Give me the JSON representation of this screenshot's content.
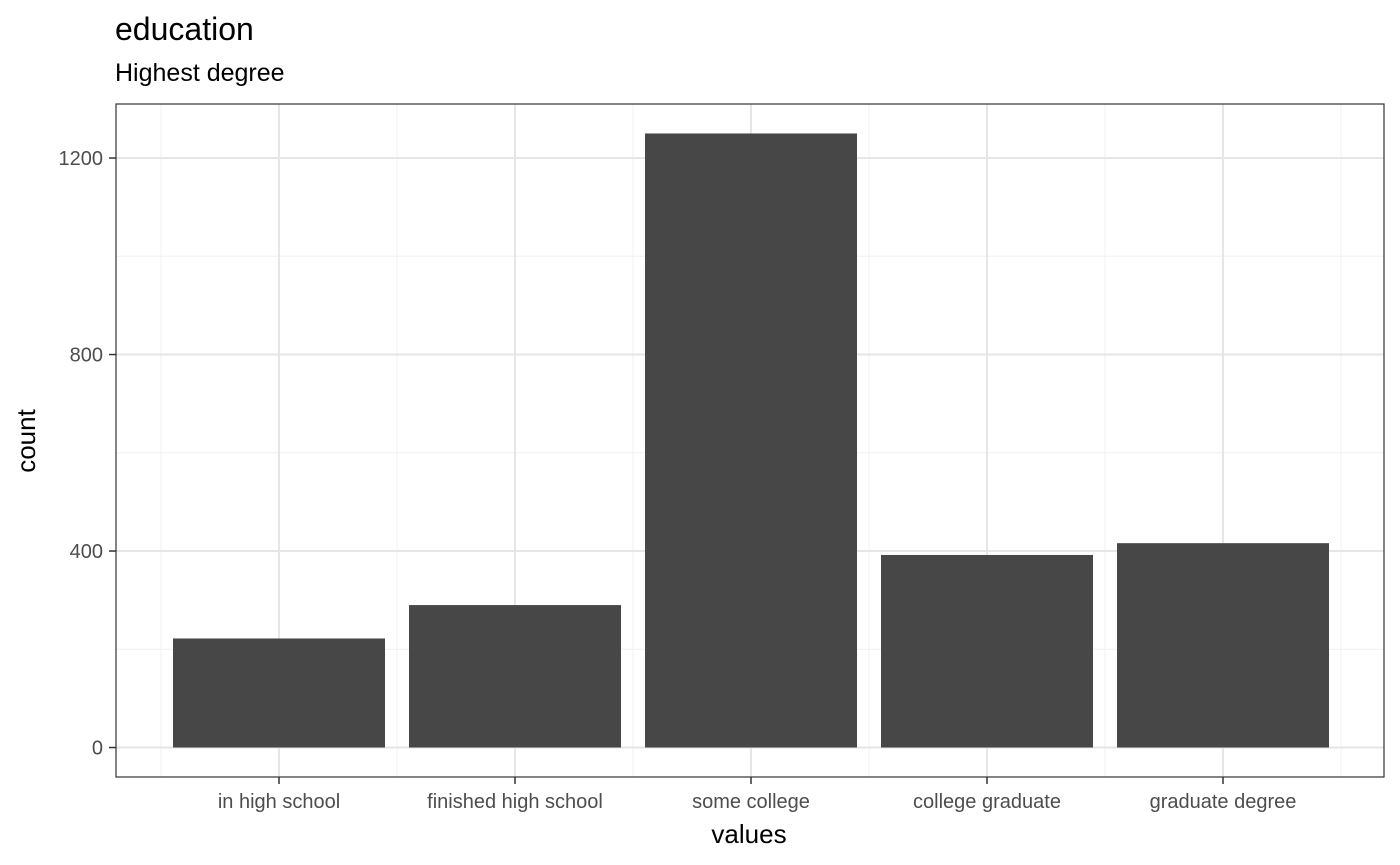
{
  "chart_data": {
    "type": "bar",
    "title": "education",
    "subtitle": "Highest degree",
    "xlabel": "values",
    "ylabel": "count",
    "categories": [
      "in high school",
      "finished high school",
      "some college",
      "college graduate",
      "graduate degree"
    ],
    "values": [
      222,
      290,
      1250,
      392,
      416
    ],
    "ylim": [
      -60,
      1310
    ],
    "yticks": [
      0,
      400,
      800,
      1200
    ],
    "grid": true,
    "bar_color": "#474747"
  }
}
